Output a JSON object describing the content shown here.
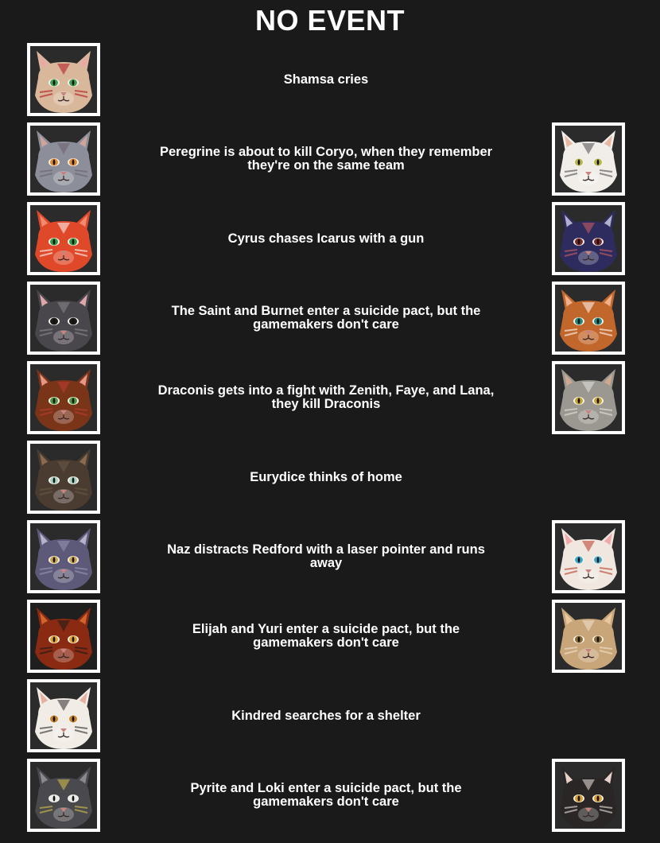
{
  "page": {
    "title": "NO EVENT"
  },
  "events": [
    {
      "text": "Shamsa cries",
      "left": {
        "icon": "cat-portrait-icon",
        "fur": "#d9b79a",
        "ear": "#e9a9a6",
        "eye": "#3fa34d",
        "bg": "#2b2b2b",
        "accent": "#b3141d"
      },
      "right": null
    },
    {
      "text": "Peregrine is about to kill Coryo, when they remember they're on the same team",
      "left": {
        "icon": "cat-portrait-icon",
        "fur": "#8c8f9a",
        "ear": "#cfa39a",
        "eye": "#e08a2a",
        "bg": "#2b2b2b",
        "accent": "#6b5f6a"
      },
      "right": {
        "icon": "cat-portrait-icon",
        "fur": "#f1eeea",
        "ear": "#e9b7a0",
        "eye": "#b9b84a",
        "bg": "#2b2b2b",
        "accent": "#4a4a4a"
      }
    },
    {
      "text": "Cyrus chases Icarus with a gun",
      "left": {
        "icon": "cat-portrait-icon",
        "fur": "#e0482a",
        "ear": "#f08a70",
        "eye": "#2f9a3f",
        "bg": "#2b2b2b",
        "accent": "#ffffff"
      },
      "right": {
        "icon": "cat-portrait-icon",
        "fur": "#2e2c5e",
        "ear": "#b2b0cc",
        "eye": "#7a2a2a",
        "bg": "#2b2b2b",
        "accent": "#d36060"
      }
    },
    {
      "text": "The Saint and Burnet enter a suicide pact, but the gamemakers don't care",
      "left": {
        "icon": "cat-portrait-icon",
        "fur": "#4a474c",
        "ear": "#dba7ab",
        "eye": "#1a1a1a",
        "bg": "#2b2b2b",
        "accent": "#8a8a8a"
      },
      "right": {
        "icon": "cat-portrait-icon",
        "fur": "#c2672b",
        "ear": "#f0b08a",
        "eye": "#1f8a80",
        "bg": "#2b2b2b",
        "accent": "#ffffff"
      }
    },
    {
      "text": "Draconis gets into a fight with Zenith, Faye, and Lana, they kill Draconis",
      "left": {
        "icon": "cat-portrait-icon",
        "fur": "#7a3519",
        "ear": "#e6968a",
        "eye": "#4d9a3a",
        "bg": "#2b2b2b",
        "accent": "#c23a30"
      },
      "right": {
        "icon": "cat-portrait-icon",
        "fur": "#9a9890",
        "ear": "#d0a890",
        "eye": "#c9a42a",
        "bg": "#2b2b2b",
        "accent": "#e8e6e0"
      }
    },
    {
      "text": "Eurydice thinks of home",
      "left": {
        "icon": "cat-portrait-icon",
        "fur": "#4a3c30",
        "ear": "#8a6a50",
        "eye": "#a6d0c0",
        "bg": "#2b2b2b",
        "accent": "#6a5a48"
      },
      "right": null
    },
    {
      "text": "Naz distracts Redford with a laser pointer and runs away",
      "left": {
        "icon": "cat-portrait-icon",
        "fur": "#5c5a78",
        "ear": "#b5b2c9",
        "eye": "#c9a24a",
        "bg": "#2b2b2b",
        "accent": "#9a98b5"
      },
      "right": {
        "icon": "cat-portrait-icon",
        "fur": "#efe7e0",
        "ear": "#f0a8a8",
        "eye": "#3aa9c9",
        "bg": "#2b2b2b",
        "accent": "#b83a24"
      }
    },
    {
      "text": "Elijah and Yuri enter a suicide pact, but the gamemakers don't care",
      "left": {
        "icon": "cat-portrait-icon",
        "fur": "#8a2a12",
        "ear": "#d0642a",
        "eye": "#e0a02a",
        "bg": "#1f1f1f",
        "accent": "#1a1a1a"
      },
      "right": {
        "icon": "cat-portrait-icon",
        "fur": "#c9a57a",
        "ear": "#e8c9a0",
        "eye": "#8a6a30",
        "bg": "#2b2b2b",
        "accent": "#f1e6cf"
      }
    },
    {
      "text": "Kindred searches for a shelter",
      "left": {
        "icon": "cat-portrait-icon",
        "fur": "#f1ece6",
        "ear": "#e6b0a0",
        "eye": "#c9852a",
        "bg": "#2b2b2b",
        "accent": "#2a2a2a"
      },
      "right": null
    },
    {
      "text": "Pyrite and Loki enter a suicide pact, but the gamemakers don't care",
      "left": {
        "icon": "cat-portrait-icon",
        "fur": "#4a4a4e",
        "ear": "#8a8a8e",
        "eye": "#e8e8e8",
        "bg": "#2b2b2b",
        "accent": "#d8c24a"
      },
      "right": {
        "icon": "cat-portrait-icon",
        "fur": "#2a2626",
        "ear": "#e6d2c8",
        "eye": "#d89a2a",
        "bg": "#2b2b2b",
        "accent": "#efe6df"
      }
    }
  ]
}
